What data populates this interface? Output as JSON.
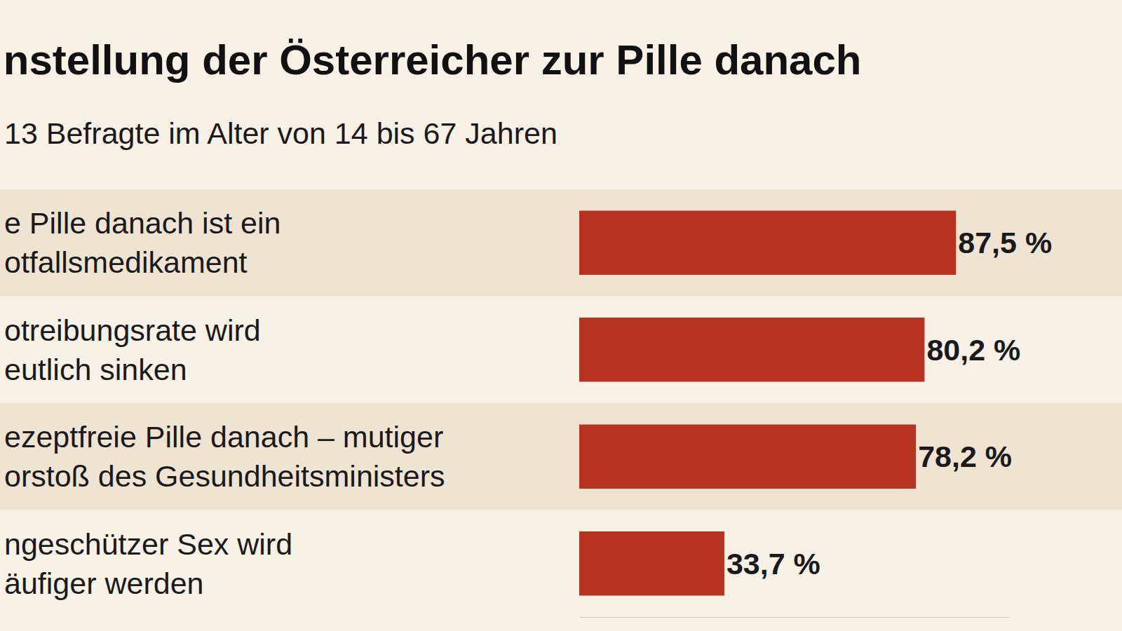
{
  "chart_data": {
    "type": "bar",
    "orientation": "horizontal",
    "title": "nstellung der Österreicher zur Pille danach",
    "subtitle": "13 Befragte im Alter von 14 bis 67 Jahren",
    "categories": [
      "e Pille danach ist ein\notfallsmedikament",
      "otreibungsrate wird\neutlich sinken",
      "ezeptfreie Pille danach – mutiger\norstoß des Gesundheitsministers",
      "ngeschützer Sex wird\näufiger werden"
    ],
    "values": [
      87.5,
      80.2,
      78.2,
      33.7
    ],
    "value_labels": [
      "87,5 %",
      "80,2 %",
      "78,2 %",
      "33,7 %"
    ],
    "color": "#b5331f",
    "xlim": [
      0,
      100
    ],
    "data_labels": true,
    "tick_labels": false,
    "grid": false
  }
}
